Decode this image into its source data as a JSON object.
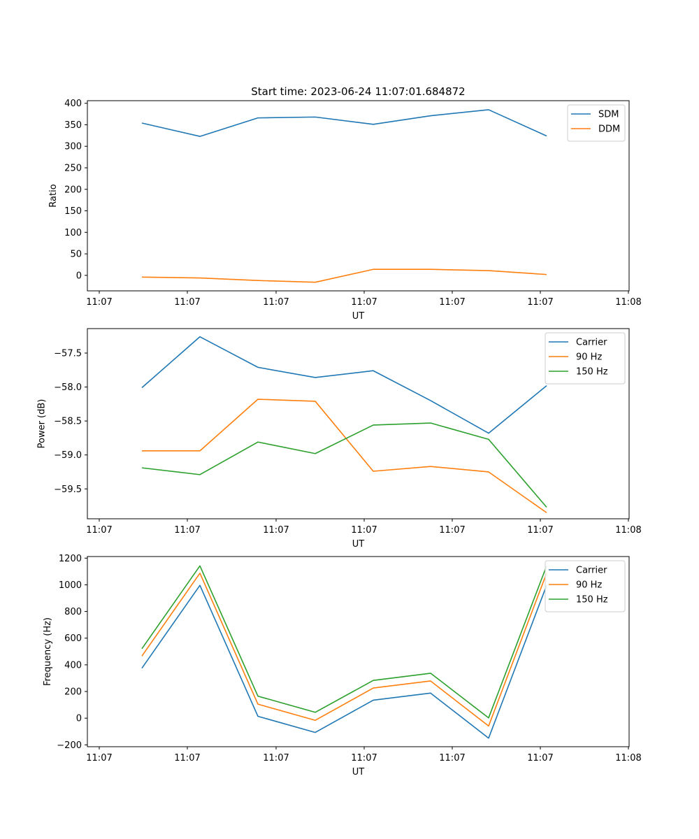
{
  "figure_title": "Start time: 2023-06-24 11:07:01.684872",
  "chart_data": [
    {
      "type": "line",
      "title": "Start time: 2023-06-24 11:07:01.684872",
      "xlabel": "UT",
      "ylabel": "Ratio",
      "x_tick_labels": [
        "11:07",
        "11:07",
        "11:07",
        "11:07",
        "11:07",
        "11:07",
        "11:08"
      ],
      "ylim": [
        -36,
        406
      ],
      "y_ticks": [
        0,
        50,
        100,
        150,
        200,
        250,
        300,
        350,
        400
      ],
      "y_tick_labels": [
        "0",
        "50",
        "100",
        "150",
        "200",
        "250",
        "300",
        "350",
        "400"
      ],
      "legend": "top-right",
      "grid": false,
      "series": [
        {
          "name": "SDM",
          "color": "#1f77b4",
          "values": [
            354,
            323,
            366,
            368,
            351,
            371,
            385,
            324
          ]
        },
        {
          "name": "DDM",
          "color": "#ff7f0e",
          "values": [
            -4,
            -6,
            -12,
            -16,
            14,
            14,
            11,
            2
          ]
        }
      ]
    },
    {
      "type": "line",
      "title": "",
      "xlabel": "UT",
      "ylabel": "Power (dB)",
      "x_tick_labels": [
        "11:07",
        "11:07",
        "11:07",
        "11:07",
        "11:07",
        "11:07",
        "11:08"
      ],
      "ylim": [
        -59.94,
        -57.14
      ],
      "y_ticks": [
        -59.5,
        -59.0,
        -58.5,
        -58.0,
        -57.5
      ],
      "y_tick_labels": [
        "−59.5",
        "−59.0",
        "−58.5",
        "−58.0",
        "−57.5"
      ],
      "legend": "top-right",
      "grid": false,
      "series": [
        {
          "name": "Carrier",
          "color": "#1f77b4",
          "values": [
            -58.01,
            -57.26,
            -57.71,
            -57.86,
            -57.76,
            -58.2,
            -58.68,
            -57.98
          ]
        },
        {
          "name": "90 Hz",
          "color": "#ff7f0e",
          "values": [
            -58.94,
            -58.94,
            -58.18,
            -58.21,
            -59.24,
            -59.17,
            -59.25,
            -59.85
          ]
        },
        {
          "name": "150 Hz",
          "color": "#2ca02c",
          "values": [
            -59.19,
            -59.29,
            -58.81,
            -58.98,
            -58.56,
            -58.53,
            -58.77,
            -59.77
          ]
        }
      ]
    },
    {
      "type": "line",
      "title": "",
      "xlabel": "UT",
      "ylabel": "Frequency (Hz)",
      "x_tick_labels": [
        "11:07",
        "11:07",
        "11:07",
        "11:07",
        "11:07",
        "11:07",
        "11:08"
      ],
      "ylim": [
        -214,
        1212
      ],
      "y_ticks": [
        -200,
        0,
        200,
        400,
        600,
        800,
        1000,
        1200
      ],
      "y_tick_labels": [
        "−200",
        "0",
        "200",
        "400",
        "600",
        "800",
        "1000",
        "1200"
      ],
      "legend": "top-right",
      "grid": false,
      "series": [
        {
          "name": "Carrier",
          "color": "#1f77b4",
          "values": [
            375,
            996,
            14,
            -107,
            135,
            188,
            -150,
            996
          ]
        },
        {
          "name": "90 Hz",
          "color": "#ff7f0e",
          "values": [
            466,
            1087,
            105,
            -16,
            226,
            279,
            -59,
            1087
          ]
        },
        {
          "name": "150 Hz",
          "color": "#2ca02c",
          "values": [
            521,
            1142,
            165,
            44,
            283,
            337,
            2,
            1142
          ]
        }
      ]
    }
  ]
}
